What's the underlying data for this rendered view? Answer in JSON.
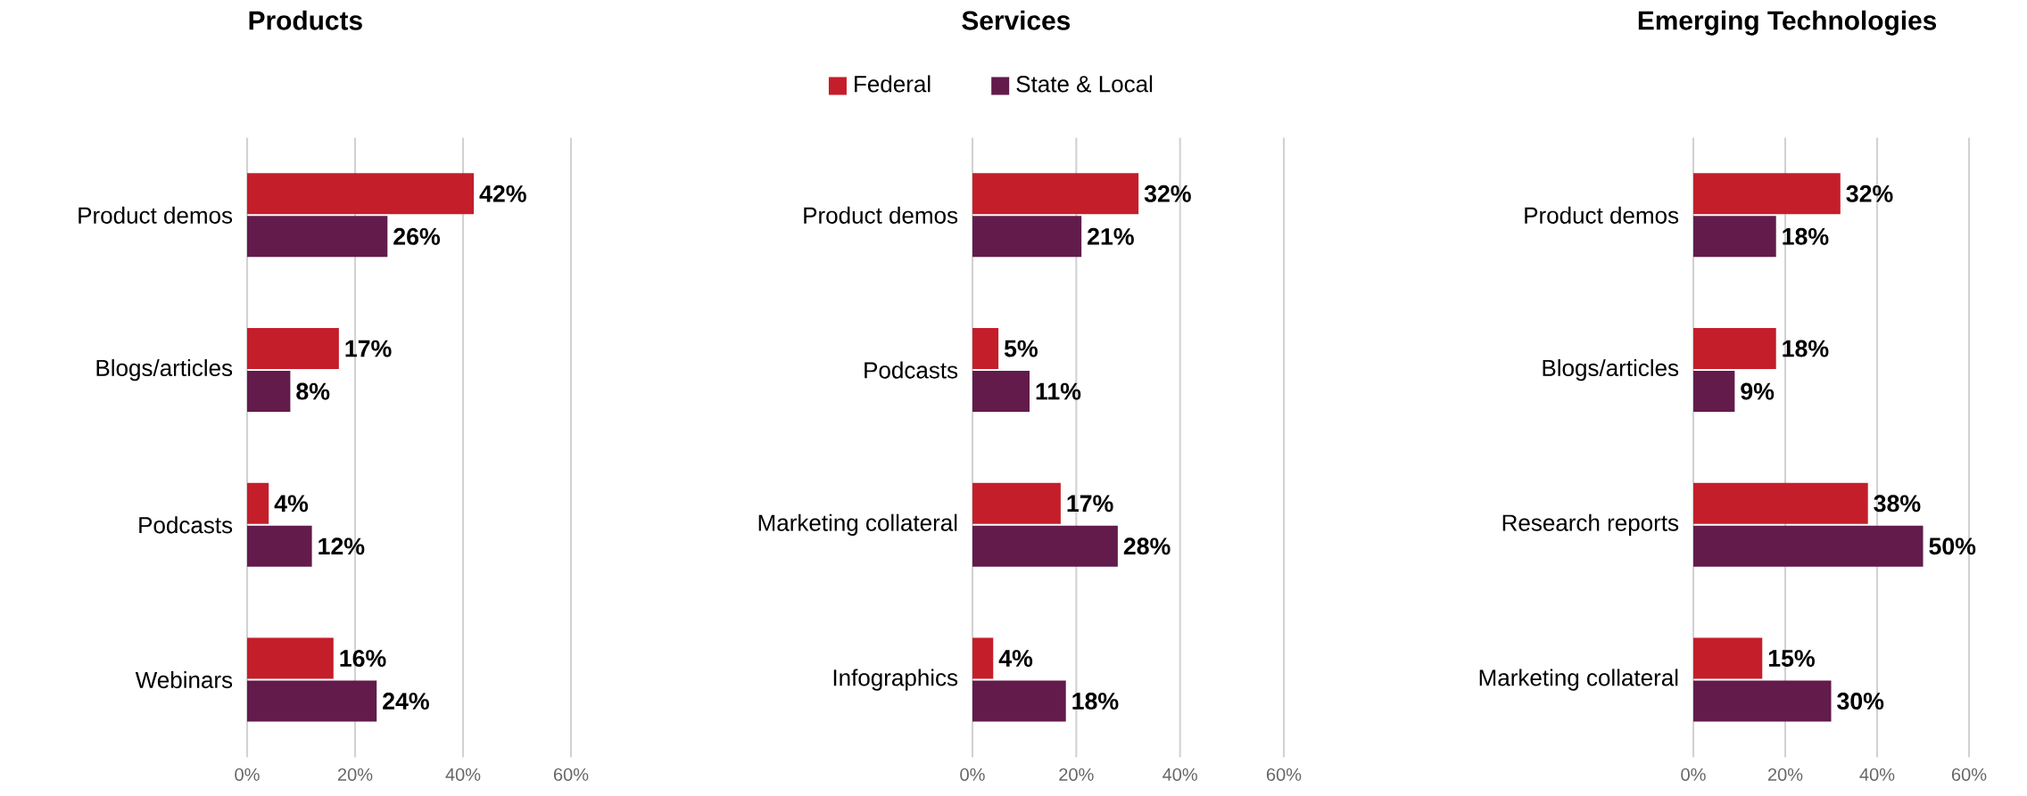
{
  "chart_data": [
    {
      "type": "bar",
      "orientation": "horizontal",
      "title": "Products",
      "categories": [
        "Product demos",
        "Blogs/articles",
        "Podcasts",
        "Webinars"
      ],
      "grid": "x",
      "xlim": [
        0,
        60
      ],
      "xticks": [
        {
          "value": 0,
          "label": "0%"
        },
        {
          "value": 20,
          "label": "20%"
        },
        {
          "value": 40,
          "label": "40%"
        },
        {
          "value": 60,
          "label": "60%"
        }
      ],
      "series": [
        {
          "color": "#c41e2a",
          "values": [
            42,
            17,
            4,
            16
          ],
          "value_labels": [
            "42%",
            "17%",
            "4%",
            "16%"
          ]
        },
        {
          "color": "#621b4b",
          "values": [
            26,
            8,
            12,
            24
          ],
          "value_labels": [
            "26%",
            "8%",
            "12%",
            "24%"
          ]
        }
      ]
    },
    {
      "type": "bar",
      "orientation": "horizontal",
      "title": "Services",
      "categories": [
        "Product demos",
        "Podcasts",
        "Marketing collateral",
        "Infographics"
      ],
      "grid": "x",
      "legend": "top",
      "xlim": [
        0,
        60
      ],
      "xticks": [
        {
          "value": 0,
          "label": "0%"
        },
        {
          "value": 20,
          "label": "20%"
        },
        {
          "value": 40,
          "label": "40%"
        },
        {
          "value": 60,
          "label": "60%"
        }
      ],
      "series": [
        {
          "name": "Federal",
          "color": "#c41e2a",
          "values": [
            32,
            5,
            17,
            4
          ],
          "value_labels": [
            "32%",
            "5%",
            "17%",
            "4%"
          ]
        },
        {
          "name": "State & Local",
          "color": "#621b4b",
          "values": [
            21,
            11,
            28,
            18
          ],
          "value_labels": [
            "21%",
            "11%",
            "28%",
            "18%"
          ]
        }
      ]
    },
    {
      "type": "bar",
      "orientation": "horizontal",
      "title": "Emerging Technologies",
      "categories": [
        "Product demos",
        "Blogs/articles",
        "Research reports",
        "Marketing collateral"
      ],
      "grid": "x",
      "xlim": [
        0,
        60
      ],
      "xticks": [
        {
          "value": 0,
          "label": "0%"
        },
        {
          "value": 20,
          "label": "20%"
        },
        {
          "value": 40,
          "label": "40%"
        },
        {
          "value": 60,
          "label": "60%"
        }
      ],
      "series": [
        {
          "color": "#c41e2a",
          "values": [
            32,
            18,
            38,
            15
          ],
          "value_labels": [
            "32%",
            "18%",
            "38%",
            "15%"
          ]
        },
        {
          "color": "#621b4b",
          "values": [
            18,
            9,
            50,
            30
          ],
          "value_labels": [
            "18%",
            "9%",
            "50%",
            "30%"
          ]
        }
      ]
    }
  ]
}
